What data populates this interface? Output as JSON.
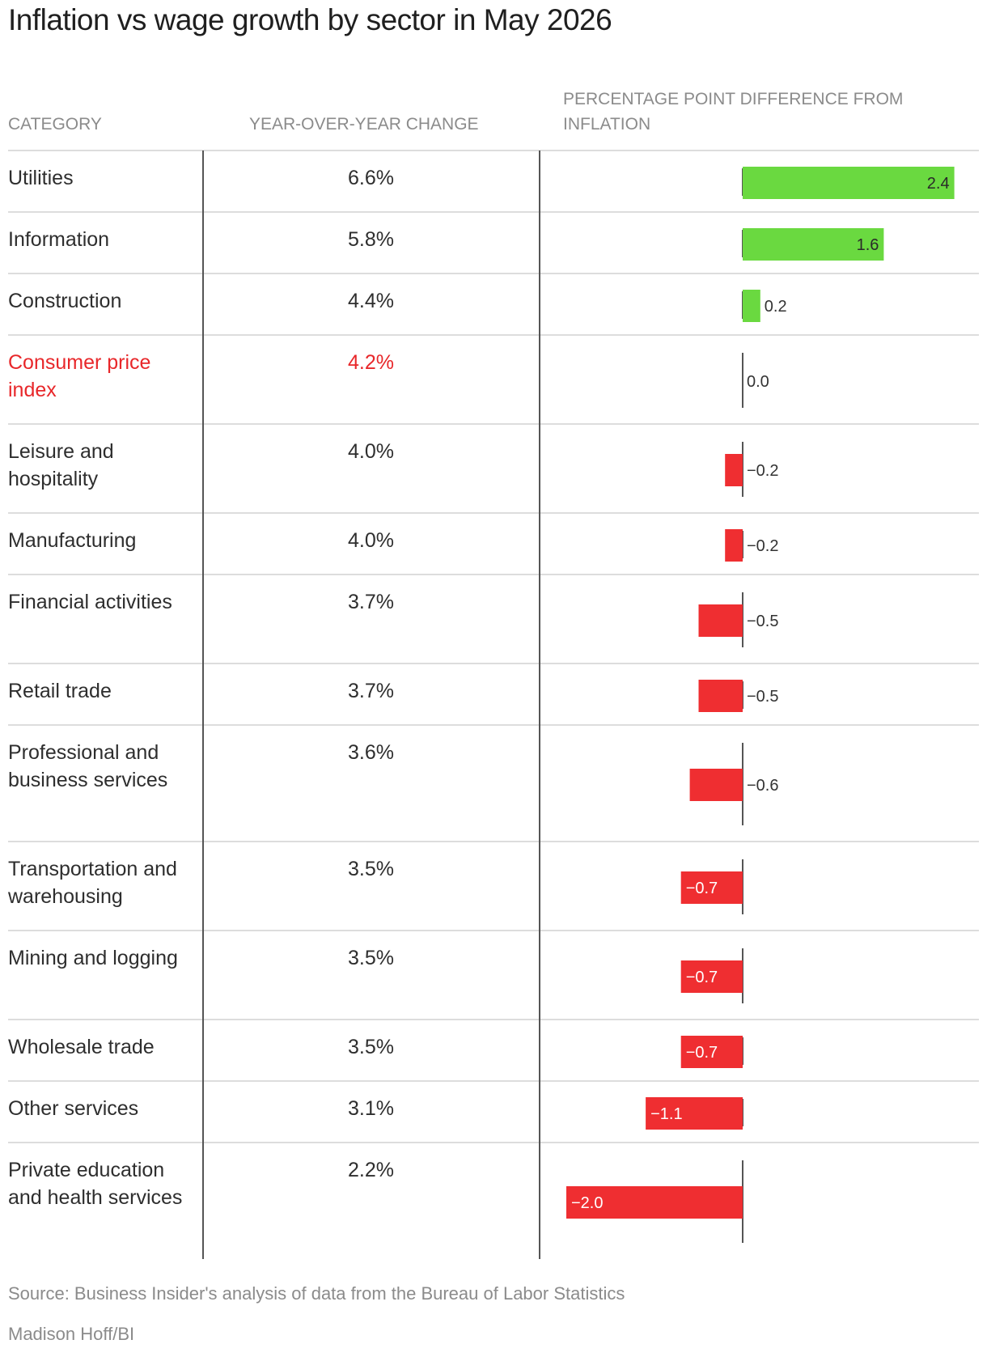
{
  "title": "Inflation vs wage growth by sector in May 2026",
  "headers": {
    "category": "CATEGORY",
    "yoy": "YEAR-OVER-YEAR CHANGE",
    "diff": "PERCENTAGE POINT DIFFERENCE FROM INFLATION"
  },
  "source": "Source: Business Insider's analysis of data from the Bureau of Labor Statistics",
  "credit": "Madison Hoff/BI",
  "colors": {
    "positive": "#6ad940",
    "negative": "#ef2e31",
    "highlight": "#e8272a",
    "axis": "#555555",
    "grid": "#dddddd"
  },
  "chart_data": {
    "type": "table",
    "columns": [
      "CATEGORY",
      "YEAR-OVER-YEAR CHANGE",
      "PERCENTAGE POINT DIFFERENCE FROM INFLATION"
    ],
    "highlight_row": "Consumer price index",
    "rows": [
      {
        "category": "Utilities",
        "yoy": "6.6%",
        "diff": 2.4,
        "diff_label": "2.4"
      },
      {
        "category": "Information",
        "yoy": "5.8%",
        "diff": 1.6,
        "diff_label": "1.6"
      },
      {
        "category": "Construction",
        "yoy": "4.4%",
        "diff": 0.2,
        "diff_label": "0.2"
      },
      {
        "category": "Consumer price index",
        "yoy": "4.2%",
        "diff": 0.0,
        "diff_label": "0.0"
      },
      {
        "category": "Leisure and hospitality",
        "yoy": "4.0%",
        "diff": -0.2,
        "diff_label": "−0.2"
      },
      {
        "category": "Manufacturing",
        "yoy": "4.0%",
        "diff": -0.2,
        "diff_label": "−0.2"
      },
      {
        "category": "Financial activities",
        "yoy": "3.7%",
        "diff": -0.5,
        "diff_label": "−0.5"
      },
      {
        "category": "Retail trade",
        "yoy": "3.7%",
        "diff": -0.5,
        "diff_label": "−0.5"
      },
      {
        "category": "Professional and business services",
        "yoy": "3.6%",
        "diff": -0.6,
        "diff_label": "−0.6"
      },
      {
        "category": "Transportation and warehousing",
        "yoy": "3.5%",
        "diff": -0.7,
        "diff_label": "−0.7"
      },
      {
        "category": "Mining and logging",
        "yoy": "3.5%",
        "diff": -0.7,
        "diff_label": "−0.7"
      },
      {
        "category": "Wholesale trade",
        "yoy": "3.5%",
        "diff": -0.7,
        "diff_label": "−0.7"
      },
      {
        "category": "Other services",
        "yoy": "3.1%",
        "diff": -1.1,
        "diff_label": "−1.1"
      },
      {
        "category": "Private education and health services",
        "yoy": "2.2%",
        "diff": -2.0,
        "diff_label": "−2.0"
      }
    ]
  }
}
